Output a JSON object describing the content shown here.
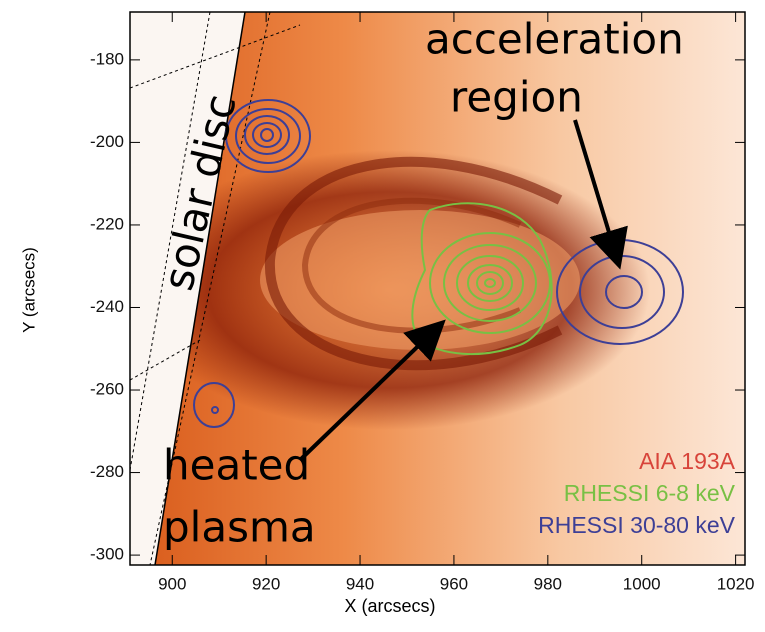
{
  "chart_data": {
    "type": "image",
    "x_label": "X (arcsecs)",
    "y_label": "Y (arcsecs)",
    "xlim": [
      891,
      1022
    ],
    "ylim": [
      -302.4,
      -168.4
    ],
    "xticks": [
      900,
      920,
      940,
      960,
      980,
      1000,
      1020
    ],
    "yticks": [
      -180,
      -200,
      -220,
      -240,
      -260,
      -280,
      -300
    ],
    "annotations": [
      "acceleration",
      "region",
      "solar disc",
      "heated",
      "plasma"
    ],
    "legend": [
      {
        "name": "AIA 193A",
        "color": "#d8443a"
      },
      {
        "name": "RHESSI 6-8 keV",
        "color": "#78c044"
      },
      {
        "name": "RHESSI 30-80 keV",
        "color": "#3d3f96"
      }
    ]
  }
}
